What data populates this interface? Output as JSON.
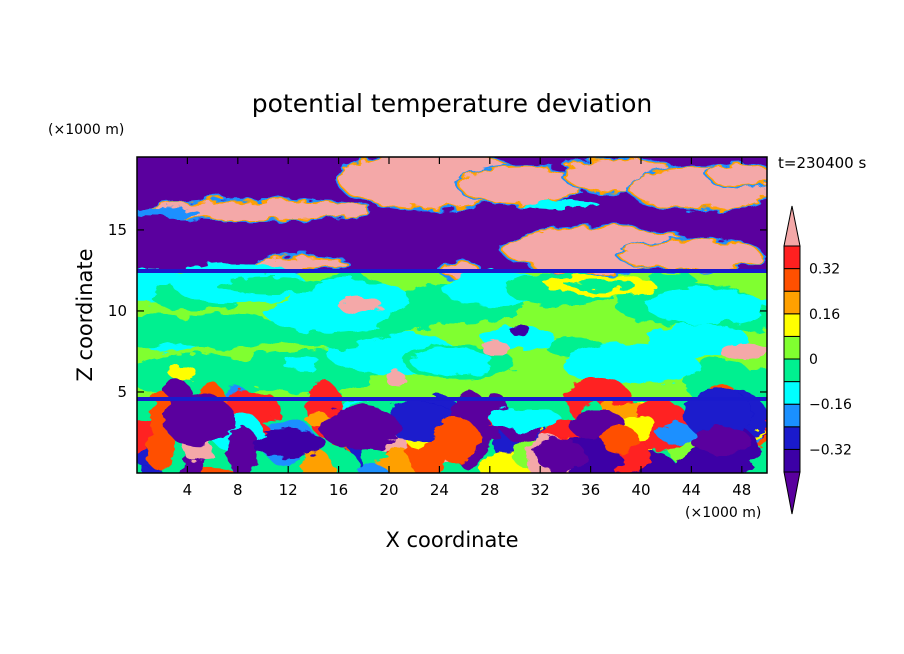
{
  "chart_data": {
    "type": "heatmap",
    "title": "potential temperature deviation",
    "xlabel": "X coordinate",
    "ylabel": "Z coordinate",
    "x_unit": "(×1000 m)",
    "y_unit": "(×1000 m)",
    "time_label": "t=230400 s",
    "xlim": [
      0,
      50
    ],
    "ylim": [
      0,
      19.5
    ],
    "x_ticks": [
      4,
      8,
      12,
      16,
      20,
      24,
      28,
      32,
      36,
      40,
      44,
      48
    ],
    "y_ticks": [
      5,
      10,
      15
    ],
    "colorbar": {
      "levels": [
        -0.4,
        -0.32,
        -0.24,
        -0.16,
        -0.08,
        0,
        0.08,
        0.16,
        0.24,
        0.32,
        0.4
      ],
      "tick_labels": [
        "-0.32",
        "-0.16",
        "0",
        "0.16",
        "0.32"
      ],
      "tick_values": [
        -0.32,
        -0.16,
        0,
        0.16,
        0.32
      ],
      "colors": [
        "#5a009e",
        "#3c00a6",
        "#1a1acc",
        "#1a90ff",
        "#00ffff",
        "#00f090",
        "#80ff30",
        "#ffff00",
        "#ffa000",
        "#ff5000",
        "#ff2020",
        "#f4a8a8"
      ],
      "extend": "both"
    },
    "layers": [
      {
        "z_range": [
          0,
          4.7
        ],
        "description_free": true,
        "dominant_levels": [
          -0.4,
          0.4
        ]
      },
      {
        "z_range": [
          4.7,
          12.7
        ],
        "dominant_levels": [
          0,
          0.08
        ]
      },
      {
        "z_range": [
          12.7,
          19.5
        ],
        "dominant_levels": [
          -0.4,
          0.4
        ]
      }
    ]
  }
}
